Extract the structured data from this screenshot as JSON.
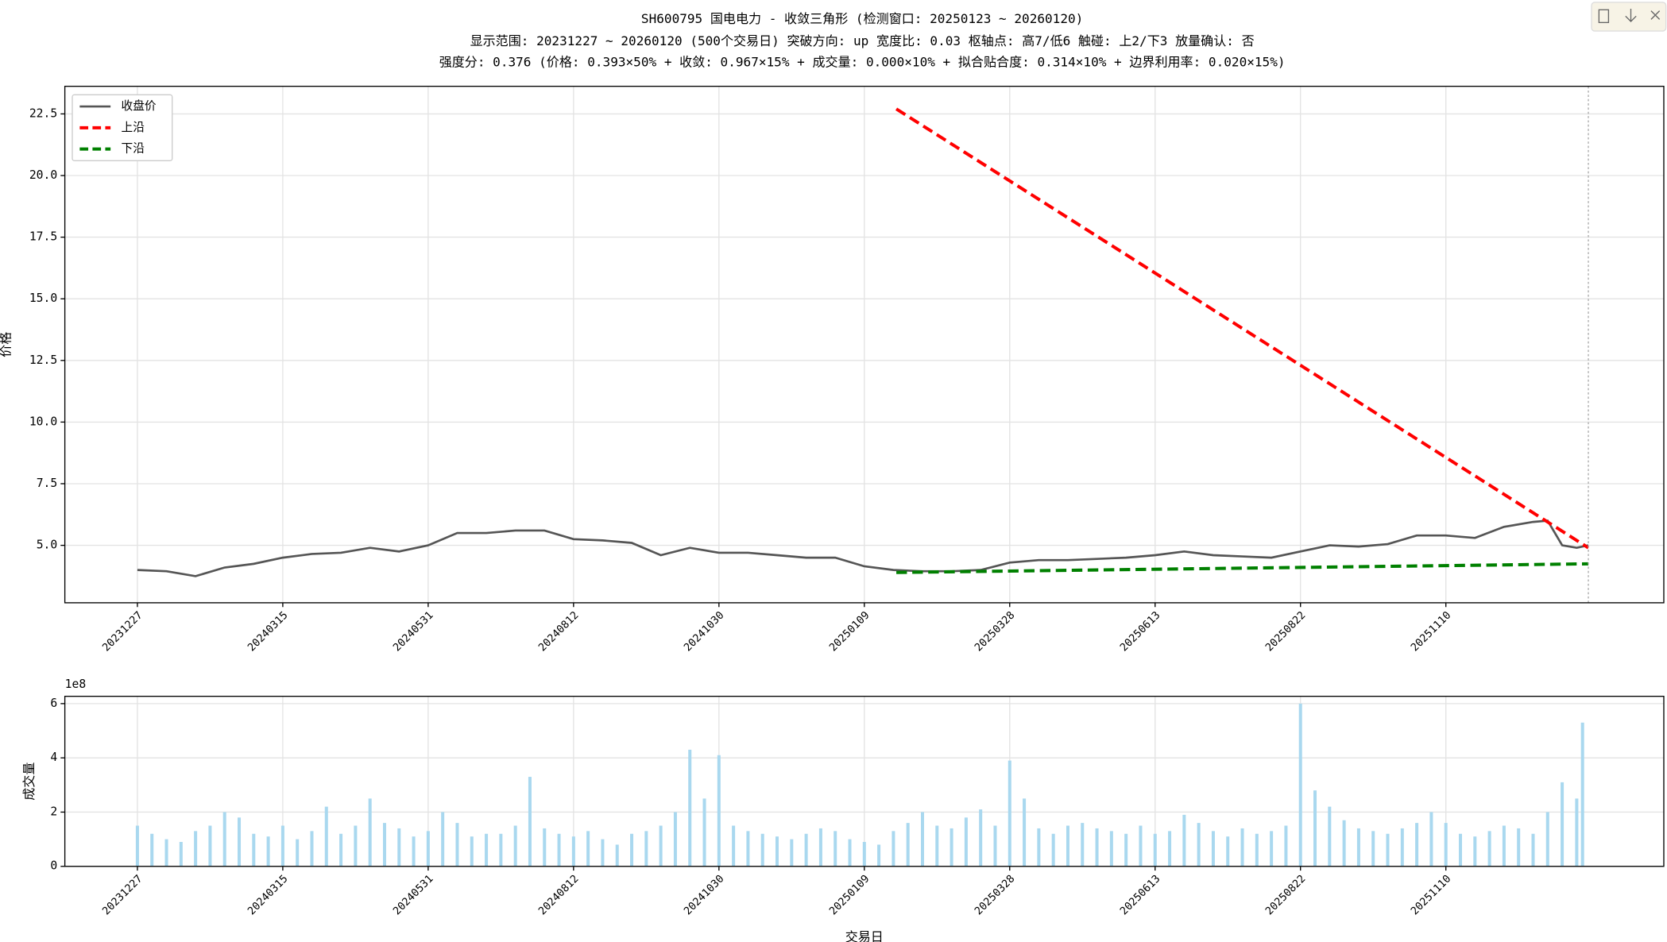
{
  "chart_data": [
    {
      "type": "line",
      "title": "SH600795 国电电力 - 收敛三角形 (检测窗口: 20250123 ~ 20260120)",
      "subtitle": [
        "显示范围: 20231227 ~ 20260120 (500个交易日) 突破方向: up  宽度比: 0.03  枢轴点: 高7/低6  触碰: 上2/下3  放量确认: 否",
        "强度分: 0.376 (价格: 0.393×50% + 收敛: 0.967×15% + 成交量: 0.000×10% + 拟合贴合度: 0.314×10% + 边界利用率: 0.020×15%)"
      ],
      "y_label": "价格",
      "xlim": [
        -24.95,
        524.95
      ],
      "ylim": [
        2.67,
        23.62
      ],
      "xticks": [
        {
          "value": 0,
          "label": "20231227"
        },
        {
          "value": 50,
          "label": "20240315"
        },
        {
          "value": 100,
          "label": "20240531"
        },
        {
          "value": 150,
          "label": "20240812"
        },
        {
          "value": 200,
          "label": "20241030"
        },
        {
          "value": 250,
          "label": "20250109"
        },
        {
          "value": 300,
          "label": "20250328"
        },
        {
          "value": 350,
          "label": "20250613"
        },
        {
          "value": 400,
          "label": "20250822"
        },
        {
          "value": 450,
          "label": "20251110"
        }
      ],
      "yticks": [
        {
          "value": 5,
          "label": "5.0"
        },
        7.5,
        {
          "value": 10,
          "label": "10.0"
        },
        12.5,
        {
          "value": 15,
          "label": "15.0"
        },
        17.5,
        {
          "value": 20,
          "label": "20.0"
        },
        22.5
      ],
      "grid": true,
      "legend": "upper left",
      "vline_x": 499,
      "series": [
        {
          "name": "收盘价",
          "color": "#555555",
          "dash": "solid",
          "x": [
            0,
            10,
            20,
            30,
            40,
            50,
            60,
            70,
            80,
            90,
            100,
            110,
            120,
            130,
            140,
            150,
            160,
            170,
            180,
            190,
            200,
            210,
            220,
            230,
            240,
            250,
            260,
            270,
            280,
            290,
            300,
            310,
            320,
            330,
            340,
            350,
            360,
            370,
            380,
            390,
            400,
            410,
            420,
            430,
            440,
            450,
            460,
            470,
            480,
            485,
            490,
            495,
            499
          ],
          "values": [
            4.0,
            3.95,
            3.75,
            4.1,
            4.25,
            4.5,
            4.65,
            4.7,
            4.9,
            4.75,
            5.0,
            5.5,
            5.5,
            5.6,
            5.6,
            5.25,
            5.2,
            5.1,
            4.6,
            4.9,
            4.7,
            4.7,
            4.6,
            4.5,
            4.5,
            4.15,
            4.0,
            3.95,
            3.95,
            4.0,
            4.3,
            4.4,
            4.4,
            4.45,
            4.5,
            4.6,
            4.75,
            4.6,
            4.55,
            4.5,
            4.75,
            5.0,
            4.95,
            5.05,
            5.4,
            5.4,
            5.3,
            5.75,
            5.95,
            6.0,
            5.0,
            4.9,
            5.0
          ]
        },
        {
          "name": "上沿",
          "color": "#ff0000",
          "dash": "dashed",
          "x": [
            261,
            499
          ],
          "values": [
            22.7,
            4.9
          ]
        },
        {
          "name": "下沿",
          "color": "#008000",
          "dash": "dashed",
          "x": [
            261,
            499
          ],
          "values": [
            3.9,
            4.25
          ]
        }
      ]
    },
    {
      "type": "bar",
      "x_label": "交易日",
      "y_label": "成交量",
      "offset_label": "1e8",
      "xlim": [
        -24.95,
        524.95
      ],
      "ylim": [
        0,
        6.27
      ],
      "xticks": [
        {
          "value": 0,
          "label": "20231227"
        },
        {
          "value": 50,
          "label": "20240315"
        },
        {
          "value": 100,
          "label": "20240531"
        },
        {
          "value": 150,
          "label": "20240812"
        },
        {
          "value": 200,
          "label": "20241030"
        },
        {
          "value": 250,
          "label": "20250109"
        },
        {
          "value": 300,
          "label": "20250328"
        },
        {
          "value": 350,
          "label": "20250613"
        },
        {
          "value": 400,
          "label": "20250822"
        },
        {
          "value": 450,
          "label": "20251110"
        }
      ],
      "yticks": [
        0,
        2,
        4,
        6
      ],
      "grid": true,
      "color": "#a9d8ef",
      "x": [
        0,
        5,
        10,
        15,
        20,
        25,
        30,
        35,
        40,
        45,
        50,
        55,
        60,
        65,
        70,
        75,
        80,
        85,
        90,
        95,
        100,
        105,
        110,
        115,
        120,
        125,
        130,
        135,
        140,
        145,
        150,
        155,
        160,
        165,
        170,
        175,
        180,
        185,
        190,
        195,
        200,
        205,
        210,
        215,
        220,
        225,
        230,
        235,
        240,
        245,
        250,
        255,
        260,
        265,
        270,
        275,
        280,
        285,
        290,
        295,
        300,
        305,
        310,
        315,
        320,
        325,
        330,
        335,
        340,
        345,
        350,
        355,
        360,
        365,
        370,
        375,
        380,
        385,
        390,
        395,
        400,
        405,
        410,
        415,
        420,
        425,
        430,
        435,
        440,
        445,
        450,
        455,
        460,
        465,
        470,
        475,
        480,
        485,
        490,
        495,
        497
      ],
      "values": [
        1.5,
        1.2,
        1.0,
        0.9,
        1.3,
        1.5,
        2.0,
        1.8,
        1.2,
        1.1,
        1.5,
        1.0,
        1.3,
        2.2,
        1.2,
        1.5,
        2.5,
        1.6,
        1.4,
        1.1,
        1.3,
        2.0,
        1.6,
        1.1,
        1.2,
        1.2,
        1.5,
        3.3,
        1.4,
        1.2,
        1.1,
        1.3,
        1.0,
        0.8,
        1.2,
        1.3,
        1.5,
        2.0,
        4.3,
        2.5,
        4.1,
        1.5,
        1.3,
        1.2,
        1.1,
        1.0,
        1.2,
        1.4,
        1.3,
        1.0,
        0.9,
        0.8,
        1.3,
        1.6,
        2.0,
        1.5,
        1.4,
        1.8,
        2.1,
        1.5,
        3.9,
        2.5,
        1.4,
        1.2,
        1.5,
        1.6,
        1.4,
        1.3,
        1.2,
        1.5,
        1.2,
        1.3,
        1.9,
        1.6,
        1.3,
        1.1,
        1.4,
        1.2,
        1.3,
        1.5,
        6.0,
        2.8,
        2.2,
        1.7,
        1.4,
        1.3,
        1.2,
        1.4,
        1.6,
        2.0,
        1.6,
        1.2,
        1.1,
        1.3,
        1.5,
        1.4,
        1.2,
        2.0,
        3.1,
        2.5,
        5.3
      ]
    }
  ]
}
